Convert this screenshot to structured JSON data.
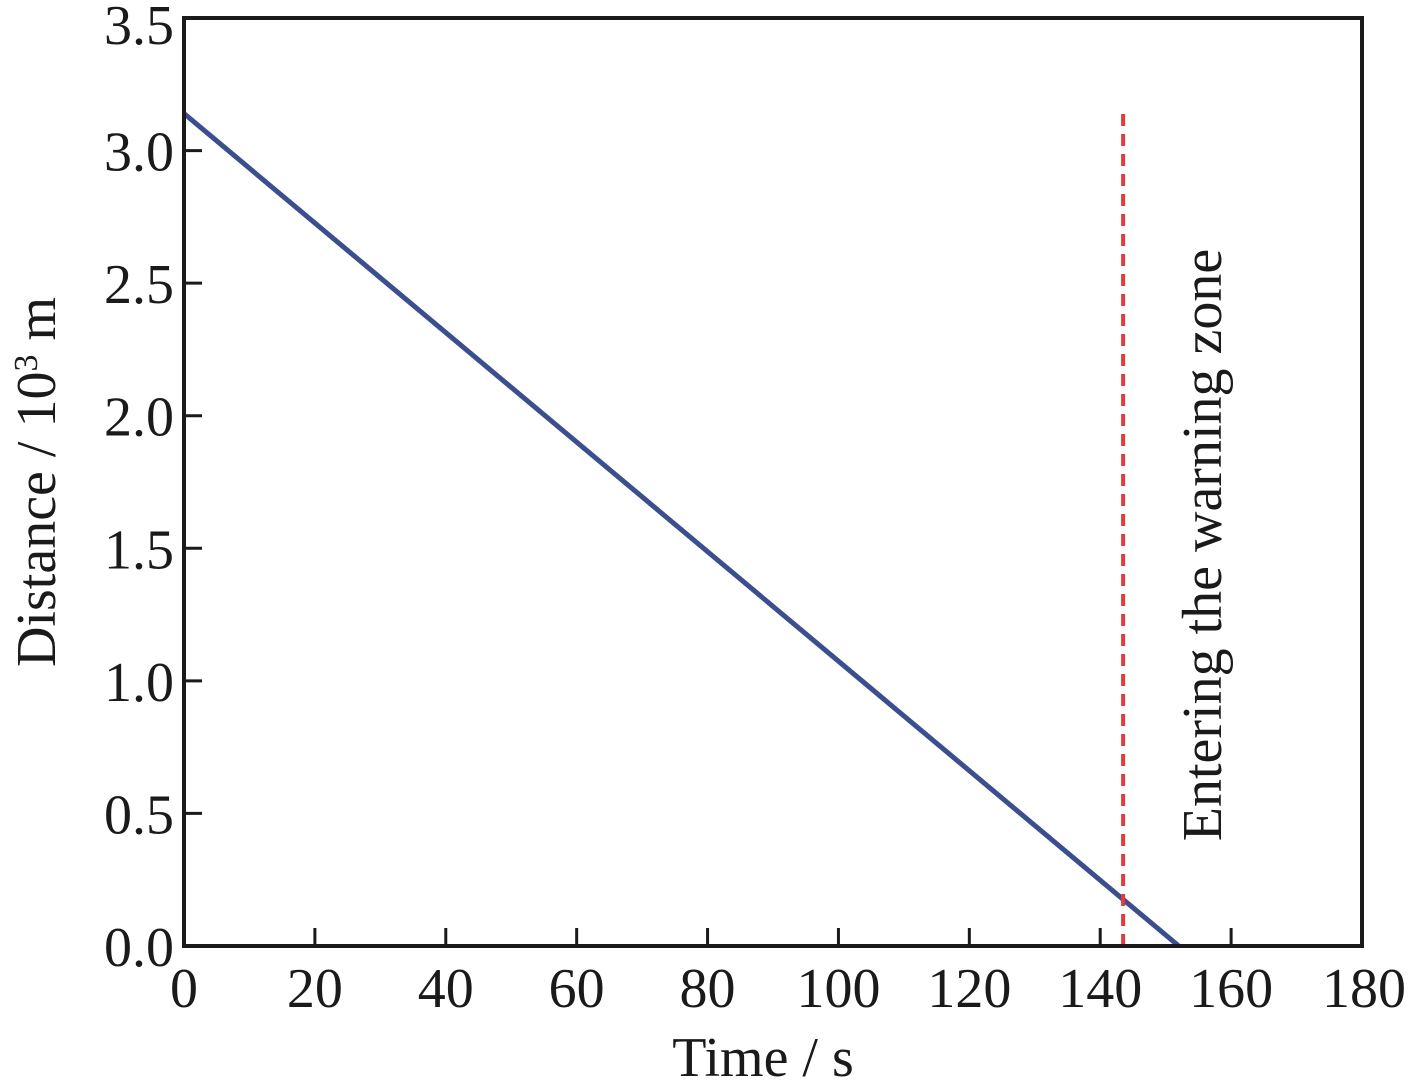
{
  "chart_data": {
    "type": "line",
    "xlabel": "Time / s",
    "ylabel_main": "Distance / 10",
    "ylabel_sup": "3",
    "ylabel_unit": " m",
    "xlim": [
      0,
      180
    ],
    "ylim": [
      0,
      3.5
    ],
    "xticks": [
      "0",
      "20",
      "40",
      "60",
      "80",
      "100",
      "120",
      "140",
      "160",
      "180"
    ],
    "yticks": [
      "0.0",
      "0.5",
      "1.0",
      "1.5",
      "2.0",
      "2.5",
      "3.0",
      "3.5"
    ],
    "grid": false,
    "series": [
      {
        "color": "#3b4f8f",
        "x": [
          0,
          152
        ],
        "y": [
          3.14,
          0.0
        ]
      }
    ],
    "annotations": [
      {
        "type": "vline",
        "x": 143.5,
        "y_range": [
          0,
          3.15
        ],
        "color": "#e23b3b",
        "style": "dashed",
        "text": "Entering the warning zone"
      }
    ]
  }
}
